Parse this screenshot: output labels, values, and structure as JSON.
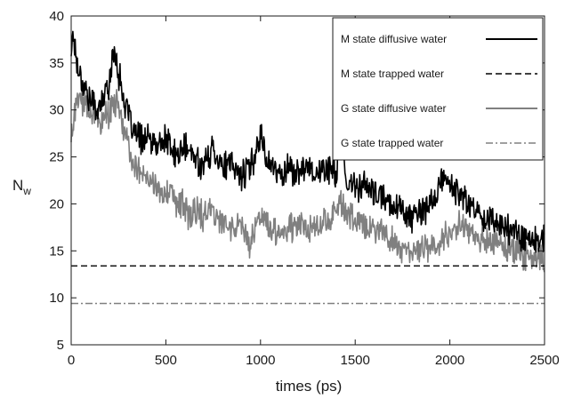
{
  "chart_data": {
    "type": "line",
    "title": "",
    "xlabel": "times (ps)",
    "ylabel": "N",
    "ylabel_subscript": "w",
    "xlim": [
      0,
      2500
    ],
    "ylim": [
      5,
      40
    ],
    "xticks": [
      0,
      500,
      1000,
      1500,
      2000,
      2500
    ],
    "yticks": [
      5,
      10,
      15,
      20,
      25,
      30,
      35,
      40
    ],
    "grid": false,
    "legend_position": "top-right",
    "series": [
      {
        "name": "M state diffusive water",
        "style": "solid",
        "color": "#000000",
        "x": [
          0,
          10,
          30,
          60,
          100,
          150,
          200,
          230,
          250,
          280,
          320,
          360,
          400,
          450,
          500,
          550,
          600,
          650,
          700,
          750,
          800,
          850,
          900,
          950,
          1000,
          1030,
          1060,
          1100,
          1150,
          1200,
          1250,
          1300,
          1350,
          1400,
          1420,
          1450,
          1500,
          1550,
          1600,
          1650,
          1700,
          1750,
          1800,
          1850,
          1900,
          1950,
          1980,
          2000,
          2050,
          2100,
          2150,
          2200,
          2250,
          2300,
          2350,
          2400,
          2450,
          2500
        ],
        "y": [
          36,
          38.5,
          35,
          33,
          31,
          30,
          33,
          36.5,
          34,
          31,
          28,
          27,
          27,
          26,
          27,
          25,
          26,
          25,
          24,
          26,
          24,
          24,
          23,
          24,
          27.5,
          25,
          24,
          23,
          24,
          23,
          24.5,
          23,
          24,
          23,
          28,
          22,
          22,
          22,
          21,
          20.5,
          20,
          19.5,
          18.5,
          19,
          20,
          22,
          23,
          22,
          21,
          20,
          19,
          18.5,
          18,
          17.5,
          17,
          16.5,
          16,
          16
        ]
      },
      {
        "name": "M state trapped water",
        "style": "dashed",
        "color": "#000000",
        "x": [
          0,
          2500
        ],
        "y": [
          13.4,
          13.4
        ]
      },
      {
        "name": "G state diffusive water",
        "style": "solid",
        "color": "#808080",
        "x": [
          0,
          10,
          30,
          60,
          100,
          150,
          200,
          250,
          280,
          320,
          360,
          400,
          450,
          500,
          550,
          600,
          630,
          650,
          700,
          750,
          800,
          850,
          900,
          940,
          950,
          1000,
          1050,
          1100,
          1150,
          1200,
          1250,
          1300,
          1350,
          1400,
          1430,
          1450,
          1500,
          1550,
          1600,
          1650,
          1700,
          1750,
          1800,
          1850,
          1900,
          1950,
          2000,
          2050,
          2100,
          2150,
          2200,
          2250,
          2300,
          2350,
          2400,
          2450,
          2500
        ],
        "y": [
          27,
          28.5,
          31,
          31,
          30,
          29,
          29.5,
          31,
          27,
          25,
          24,
          22.5,
          21.5,
          21,
          20.5,
          19.5,
          18,
          19.5,
          18.5,
          19.5,
          18,
          17.5,
          17.5,
          15.5,
          17,
          18,
          17.5,
          17,
          17.5,
          18,
          17.5,
          18,
          18,
          19,
          20.5,
          19,
          18.5,
          18,
          17.5,
          17,
          16,
          15,
          14.5,
          15,
          15.5,
          16,
          17,
          17.5,
          17,
          16.5,
          16,
          16,
          15.5,
          15,
          14.5,
          14,
          14
        ]
      },
      {
        "name": "G state trapped water",
        "style": "dashdot",
        "color": "#808080",
        "x": [
          0,
          2500
        ],
        "y": [
          9.4,
          9.4
        ]
      }
    ]
  }
}
